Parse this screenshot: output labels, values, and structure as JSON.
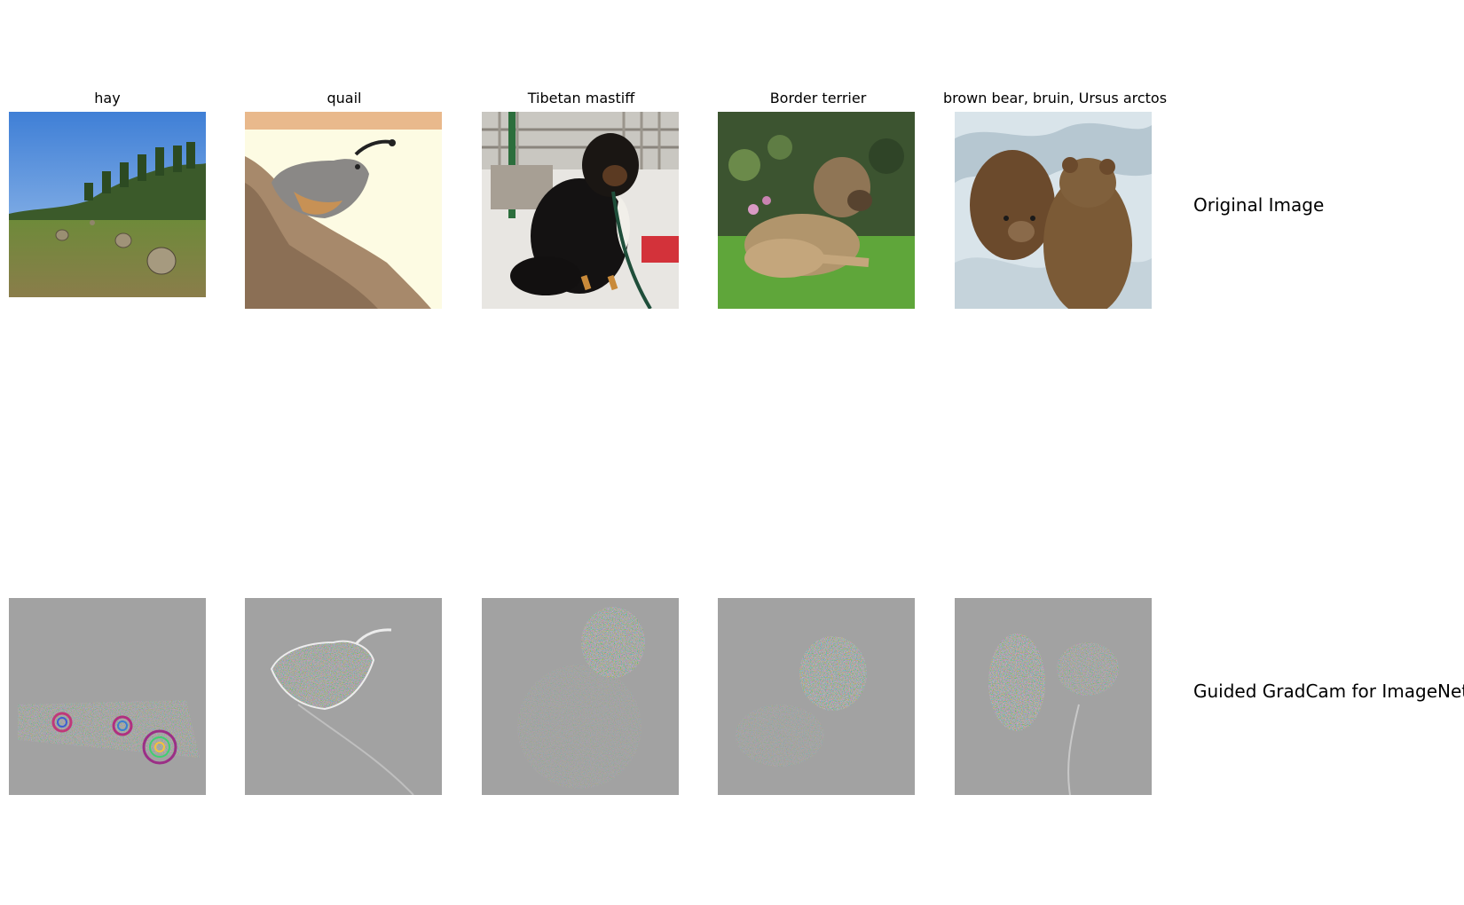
{
  "figure": {
    "columns": [
      {
        "title": "hay",
        "original_icon": "hay-field-photo-icon",
        "saliency_icon": "hay-saliency-map-icon"
      },
      {
        "title": "quail",
        "original_icon": "quail-photo-icon",
        "saliency_icon": "quail-saliency-map-icon"
      },
      {
        "title": "Tibetan mastiff",
        "original_icon": "mastiff-photo-icon",
        "saliency_icon": "mastiff-saliency-map-icon"
      },
      {
        "title": "Border terrier",
        "original_icon": "terrier-photo-icon",
        "saliency_icon": "terrier-saliency-map-icon"
      },
      {
        "title": "brown bear, bruin, Ursus arctos",
        "original_icon": "bear-photo-icon",
        "saliency_icon": "bear-saliency-map-icon"
      }
    ],
    "row_labels": {
      "top": "Original Image",
      "bottom": "Guided GradCam for ImageNet"
    }
  }
}
